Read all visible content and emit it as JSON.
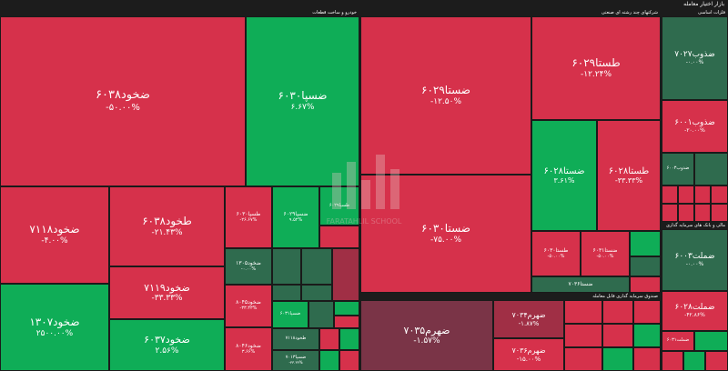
{
  "header": {
    "title": "بازار اختیار معامله"
  },
  "groups": {
    "g1": "خودرو و ساخت قطعات",
    "g2": "شرکتهای چند رشته ای صنعتی",
    "g3": "فلزات اساسی",
    "g4": "صندوق سرمایه گذاری قابل معامله",
    "g5": "مالی و بانک های سرمایه گذاری"
  },
  "cells": {
    "c1": {
      "name": "ضخود۶۰۳۸",
      "pct": "-۵۰.۰۰%"
    },
    "c2": {
      "name": "ضسپا۶۰۳۰",
      "pct": "۶.۶۷%"
    },
    "c3": {
      "name": "ضخود۷۱۱۸",
      "pct": "-۴.۰۰%"
    },
    "c4": {
      "name": "طخود۶۰۳۸",
      "pct": "-۲۱.۴۳%"
    },
    "c5": {
      "name": "طسپا۶۰۳۰",
      "pct": "-۲۶.۶۷%"
    },
    "c6": {
      "name": "ضسپا۶۰۲۹",
      "pct": "۹.۵۲%"
    },
    "c7": {
      "name": "طسپا۶۰۲۹",
      "pct": ""
    },
    "c8": {
      "name": "ضخود۷۱۱۹",
      "pct": "-۳۳.۳۳%"
    },
    "c9": {
      "name": "ضخود۱۳۰۵",
      "pct": "-۰.۰۰%"
    },
    "c10": {
      "name": "ضخود۱۳۰۷",
      "pct": "۲۵۰۰.۰۰%"
    },
    "c11": {
      "name": "ضخود۶۰۳۷",
      "pct": "۲.۵۶%"
    },
    "c12": {
      "name": "ضخود۸۰۴۵",
      "pct": "-۳۳.۳۳%"
    },
    "c13": {
      "name": "ضخود۸۰۴۶",
      "pct": "۳.۶۶%"
    },
    "c14": {
      "name": "طخود۷۱۱۸",
      "pct": ""
    },
    "c15": {
      "name": "ضسپا۷۰۱۳",
      "pct": "-۳۳.۳۳%"
    },
    "c16": {
      "name": "ضسپا۶۰۳۱",
      "pct": ""
    },
    "c17": {
      "name": "ضستا۶۰۲۹",
      "pct": "-۱۲.۵۰%"
    },
    "c18": {
      "name": "طستا۶۰۲۹",
      "pct": "-۱۲.۲۴%"
    },
    "c19": {
      "name": "ضستا۶۰۲۸",
      "pct": "۳.۶۱%"
    },
    "c20": {
      "name": "طستا۶۰۲۸",
      "pct": "-۳۳.۳۳%"
    },
    "c21": {
      "name": "ضستا۶۰۳۰",
      "pct": "-۷۵.۰۰%"
    },
    "c22": {
      "name": "طستا۶۰۳۰",
      "pct": "-۵۰.۰۰%"
    },
    "c23": {
      "name": "ضستا۶۰۳۱",
      "pct": "-۵۰.۰۰%"
    },
    "c24": {
      "name": "ضستا۷۰۳۶",
      "pct": ""
    },
    "c25": {
      "name": "ضذوب۷۰۲۷",
      "pct": "-۰.۰۰%"
    },
    "c26": {
      "name": "ضذوب۶۰۰۱",
      "pct": "-۲۰.۰۰%"
    },
    "c27": {
      "name": "ضذوب۶۰۰۳",
      "pct": ""
    },
    "c28": {
      "name": "ضهرم۷۰۳۵",
      "pct": "-۱.۵۷%"
    },
    "c29": {
      "name": "ضهرم۷۰۳۴",
      "pct": "-۱.۸۷%"
    },
    "c30": {
      "name": "ضهرم۷۰۳۶",
      "pct": "-۱۵.۰۰%"
    },
    "c31": {
      "name": "ضملت۶۰۰۳",
      "pct": "-۰.۰۰%"
    },
    "c32": {
      "name": "ضملت۶۰۲۸",
      "pct": "-۴۲.۸۶%"
    },
    "c33": {
      "name": "ضملت۶۰۳۱",
      "pct": ""
    }
  },
  "colors": {
    "red": "#d6314b",
    "green": "#0fad57",
    "dark_green": "#2f6b4e",
    "dark_red": "#7a3447"
  },
  "watermark": {
    "text": "FARATAHLIL SCHOOL"
  }
}
